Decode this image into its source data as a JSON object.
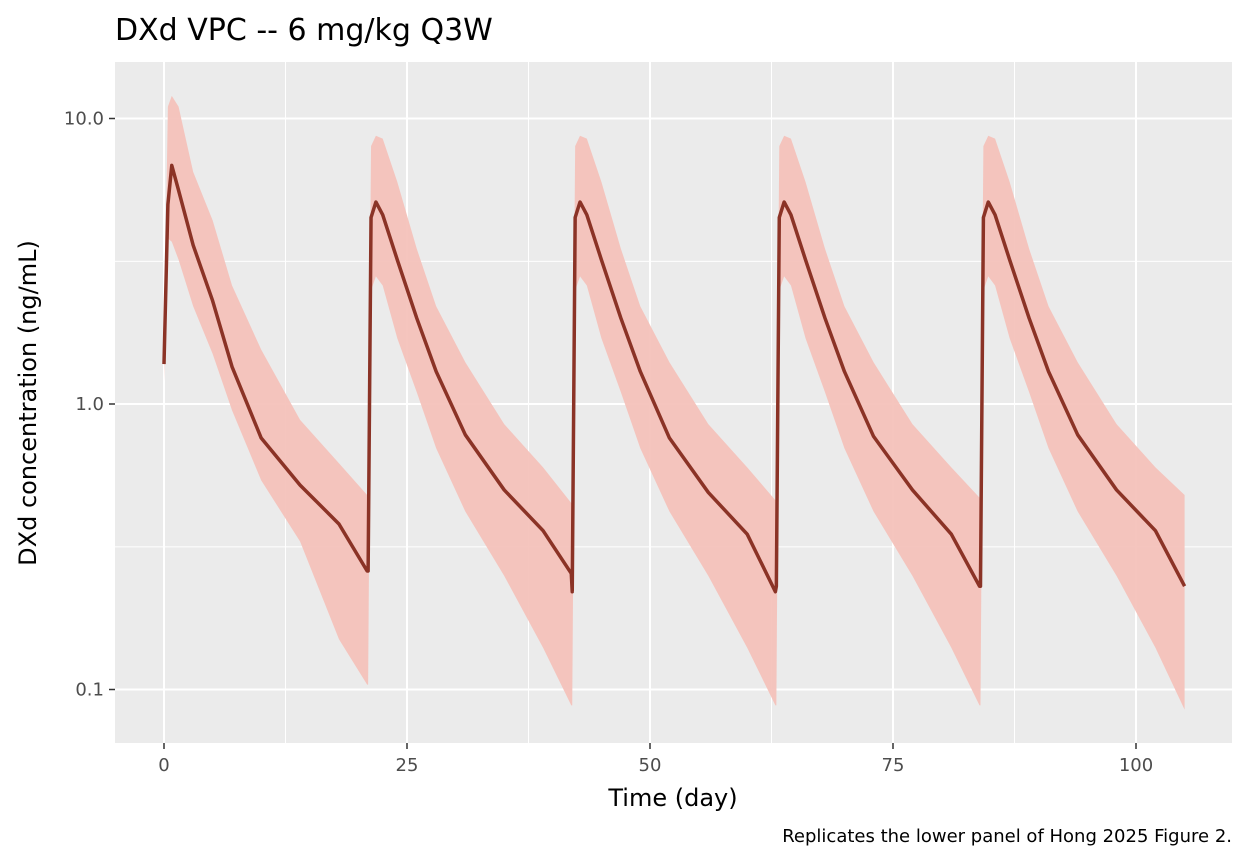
{
  "chart_data": {
    "type": "line",
    "title": "DXd VPC -- 6 mg/kg Q3W",
    "xlabel": "Time (day)",
    "ylabel": "DXd concentration (ng/mL)",
    "caption": "Replicates the lower panel of Hong 2025 Figure 2.",
    "xlim": [
      -5,
      110
    ],
    "ylim_log10": [
      -1.17,
      1.2
    ],
    "yscale": "log10",
    "grid": true,
    "x_ticks": [
      {
        "v": 0,
        "label": "0"
      },
      {
        "v": 25,
        "label": "25"
      },
      {
        "v": 50,
        "label": "50"
      },
      {
        "v": 75,
        "label": "75"
      },
      {
        "v": 100,
        "label": "100"
      }
    ],
    "y_ticks": [
      {
        "v": 0.1,
        "label": "0.1"
      },
      {
        "v": 1,
        "label": "1.0"
      },
      {
        "v": 10,
        "label": "10.0"
      }
    ],
    "colors": {
      "median": "#8b3326",
      "band": "#f4c2bb",
      "panel": "#ebebeb",
      "grid": "#ffffff"
    },
    "x": [
      0,
      0.4,
      0.8,
      1.5,
      3,
      5,
      7,
      10,
      14,
      18,
      20.9,
      21,
      21.3,
      21.8,
      22.5,
      24,
      26,
      28,
      31,
      35,
      39,
      41.9,
      42,
      42.3,
      42.8,
      43.5,
      45,
      47,
      49,
      52,
      56,
      60,
      62.9,
      63,
      63.3,
      63.8,
      64.5,
      66,
      68,
      70,
      73,
      77,
      81,
      83.9,
      84,
      84.3,
      84.8,
      85.5,
      87,
      89,
      91,
      94,
      98,
      102,
      105
    ],
    "series": [
      {
        "name": "median",
        "values": [
          1.38,
          5.0,
          6.85,
          5.6,
          3.6,
          2.3,
          1.35,
          0.76,
          0.52,
          0.38,
          0.26,
          0.26,
          4.5,
          5.1,
          4.6,
          3.2,
          2.0,
          1.3,
          0.78,
          0.5,
          0.36,
          0.255,
          0.22,
          4.5,
          5.1,
          4.6,
          3.2,
          2.0,
          1.3,
          0.76,
          0.49,
          0.35,
          0.22,
          0.23,
          4.5,
          5.1,
          4.6,
          3.2,
          2.0,
          1.3,
          0.77,
          0.5,
          0.35,
          0.23,
          0.23,
          4.5,
          5.1,
          4.6,
          3.2,
          2.0,
          1.3,
          0.78,
          0.5,
          0.36,
          0.23
        ]
      },
      {
        "name": "lower",
        "values": [
          1.2,
          3.8,
          3.7,
          3.2,
          2.2,
          1.5,
          0.95,
          0.54,
          0.33,
          0.15,
          0.104,
          0.104,
          2.5,
          2.8,
          2.6,
          1.7,
          1.1,
          0.7,
          0.42,
          0.25,
          0.14,
          0.088,
          0.088,
          2.5,
          2.8,
          2.6,
          1.7,
          1.1,
          0.7,
          0.42,
          0.25,
          0.14,
          0.088,
          0.088,
          2.5,
          2.8,
          2.6,
          1.7,
          1.1,
          0.7,
          0.42,
          0.25,
          0.14,
          0.088,
          0.088,
          2.5,
          2.8,
          2.6,
          1.7,
          1.1,
          0.7,
          0.42,
          0.25,
          0.14,
          0.085
        ]
      },
      {
        "name": "upper",
        "values": [
          1.6,
          11,
          12,
          11,
          6.5,
          4.4,
          2.6,
          1.55,
          0.88,
          0.62,
          0.48,
          0.48,
          8,
          8.7,
          8.5,
          6,
          3.5,
          2.2,
          1.4,
          0.85,
          0.6,
          0.45,
          0.45,
          8,
          8.7,
          8.5,
          6,
          3.5,
          2.2,
          1.4,
          0.85,
          0.6,
          0.46,
          0.46,
          8,
          8.7,
          8.5,
          6,
          3.5,
          2.2,
          1.4,
          0.85,
          0.6,
          0.47,
          0.47,
          8,
          8.7,
          8.5,
          6,
          3.5,
          2.2,
          1.4,
          0.85,
          0.6,
          0.48
        ]
      }
    ]
  }
}
